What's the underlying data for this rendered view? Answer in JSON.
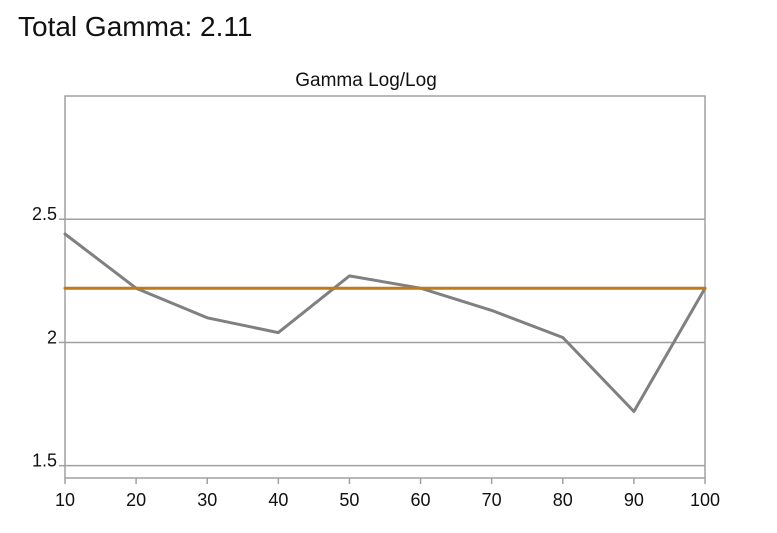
{
  "header": {
    "title": "Total Gamma: 2.11"
  },
  "chart_data": {
    "type": "line",
    "title": "Gamma Log/Log",
    "xlabel": "",
    "ylabel": "",
    "xlim": [
      10,
      100
    ],
    "ylim": [
      1.45,
      3.0
    ],
    "x_ticks": [
      10,
      20,
      30,
      40,
      50,
      60,
      70,
      80,
      90,
      100
    ],
    "x_tick_labels": [
      "10",
      "20",
      "30",
      "40",
      "50",
      "60",
      "70",
      "80",
      "90",
      "100"
    ],
    "y_ticks": [
      1.5,
      2.0,
      2.5
    ],
    "y_tick_labels": [
      "1.5",
      "2",
      "2.5"
    ],
    "grid": "horizontal",
    "legend": "none",
    "series": [
      {
        "x": [
          10,
          20,
          30,
          40,
          50,
          60,
          70,
          80,
          90,
          100
        ],
        "values": [
          2.44,
          2.22,
          2.1,
          2.04,
          2.27,
          2.22,
          2.13,
          2.02,
          1.72,
          2.22
        ],
        "color": "#808080"
      },
      {
        "x": [
          10,
          100
        ],
        "values": [
          2.22,
          2.22
        ],
        "color": "#c07a17"
      }
    ]
  }
}
